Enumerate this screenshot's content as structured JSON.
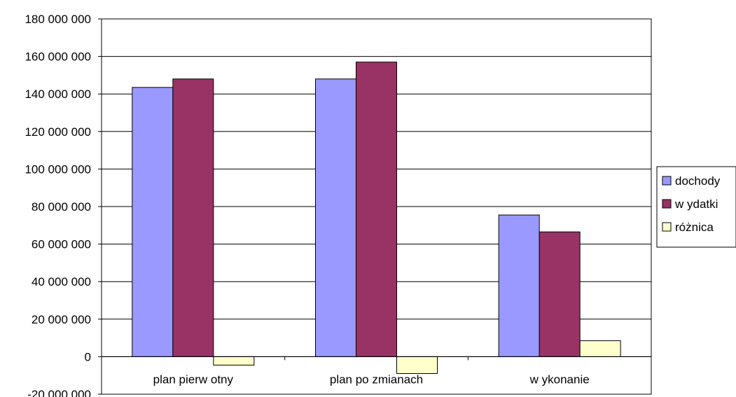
{
  "chart_data": {
    "type": "bar",
    "categories": [
      "plan pierw otny",
      "plan po zmianach",
      "w ykonanie"
    ],
    "series": [
      {
        "name": "dochody",
        "color": "#9999FF",
        "values": [
          143500000,
          148000000,
          75500000
        ]
      },
      {
        "name": "w ydatki",
        "color": "#993366",
        "values": [
          148000000,
          157000000,
          66500000
        ]
      },
      {
        "name": "różnica",
        "color": "#FFFFCC",
        "values": [
          -4500000,
          -9000000,
          8500000
        ]
      }
    ],
    "ylim": [
      -20000000,
      180000000
    ],
    "ytick_step": 20000000,
    "ytick_labels": [
      "-20 000 000",
      "0",
      "20 000 000",
      "40 000 000",
      "60 000 000",
      "80 000 000",
      "100 000 000",
      "120 000 000",
      "140 000 000",
      "160 000 000",
      "180 000 000"
    ],
    "grid": true,
    "legend_position": "right",
    "title": "",
    "xlabel": "",
    "ylabel": ""
  }
}
